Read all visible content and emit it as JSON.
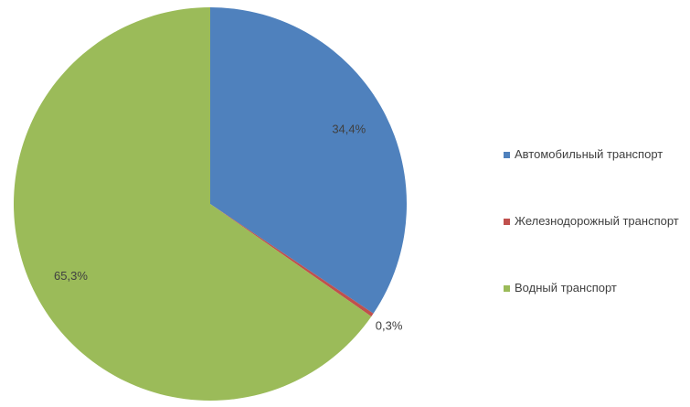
{
  "chart_data": {
    "type": "pie",
    "categories": [
      "Автомобильный транспорт",
      "Железнодорожный транспорт",
      "Водный транспорт"
    ],
    "values": [
      34.4,
      0.3,
      65.3
    ],
    "value_labels": [
      "34,4%",
      "0,3%",
      "65,3%"
    ],
    "colors": [
      "#4f81bd",
      "#c0504d",
      "#9bbb59"
    ],
    "legend": "right"
  }
}
